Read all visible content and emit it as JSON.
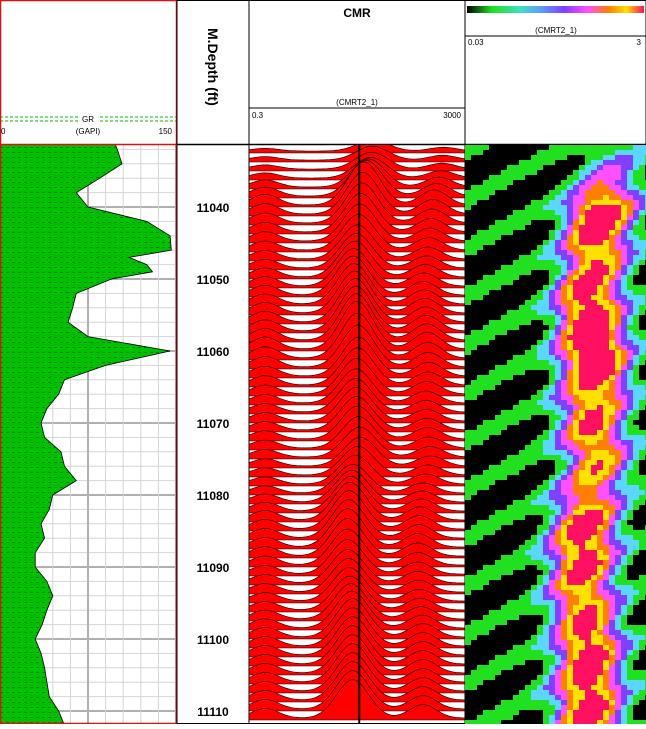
{
  "chart_data": {
    "type": "well-log",
    "depth_axis": {
      "title": "M.Depth (ft)",
      "range": [
        11030,
        11112
      ],
      "ticks": [
        11040,
        11050,
        11060,
        11070,
        11080,
        11090,
        11100,
        11110
      ]
    },
    "tracks": [
      {
        "id": "gr",
        "type": "area",
        "curve": "GR",
        "unit": "(GAPI)",
        "scale_min": "0",
        "scale_max": "150",
        "xlim": [
          0,
          150
        ],
        "fill": "#00c000",
        "depth": [
          11030,
          11032,
          11034,
          11036,
          11038,
          11040,
          11042,
          11044,
          11046,
          11047,
          11048,
          11049,
          11050,
          11052,
          11054,
          11056,
          11058,
          11060,
          11062,
          11064,
          11066,
          11068,
          11070,
          11072,
          11074,
          11076,
          11078,
          11080,
          11082,
          11084,
          11086,
          11088,
          11090,
          11092,
          11094,
          11096,
          11098,
          11100,
          11102,
          11104,
          11106,
          11108,
          11110,
          11112
        ],
        "values": [
          95,
          100,
          104,
          85,
          65,
          75,
          125,
          145,
          146,
          110,
          125,
          130,
          95,
          65,
          62,
          58,
          75,
          145,
          90,
          55,
          50,
          40,
          35,
          38,
          52,
          55,
          65,
          45,
          42,
          35,
          38,
          30,
          30,
          40,
          45,
          40,
          36,
          30,
          35,
          38,
          40,
          42,
          50,
          55
        ]
      },
      {
        "id": "cmr",
        "type": "stacked-distribution",
        "title": "CMR",
        "curve": "(CMRT2_1)",
        "scale_min": "0.3",
        "scale_max": "3000",
        "xlim": [
          0.3,
          3000
        ],
        "cutoff": 33,
        "fill": "#ff0000",
        "depth": [
          11032,
          11036,
          11040,
          11044,
          11048,
          11052,
          11056,
          11060,
          11064,
          11068,
          11072,
          11076,
          11080,
          11084,
          11088,
          11092,
          11096,
          11100,
          11104,
          11108
        ],
        "mode_t2": [
          60,
          55,
          40,
          35,
          30,
          25,
          28,
          30,
          32,
          28,
          30,
          35,
          25,
          22,
          20,
          20,
          22,
          25,
          25,
          25
        ],
        "amplitude": [
          0.2,
          0.4,
          0.9,
          0.8,
          0.7,
          0.8,
          0.9,
          1.0,
          0.8,
          0.7,
          0.7,
          0.6,
          0.6,
          0.8,
          0.8,
          0.7,
          0.7,
          0.8,
          0.8,
          0.8
        ]
      },
      {
        "id": "cmr_image",
        "type": "heatmap",
        "curve": "(CMRT2_1)",
        "scale_min": "0.03",
        "scale_max": "3",
        "xlim": [
          0.03,
          3
        ],
        "colormap": [
          "#000000",
          "#20e020",
          "#5bd6ff",
          "#8040ff",
          "#ff50ff",
          "#ff8000",
          "#ffe000",
          "#ff1060"
        ]
      }
    ]
  }
}
